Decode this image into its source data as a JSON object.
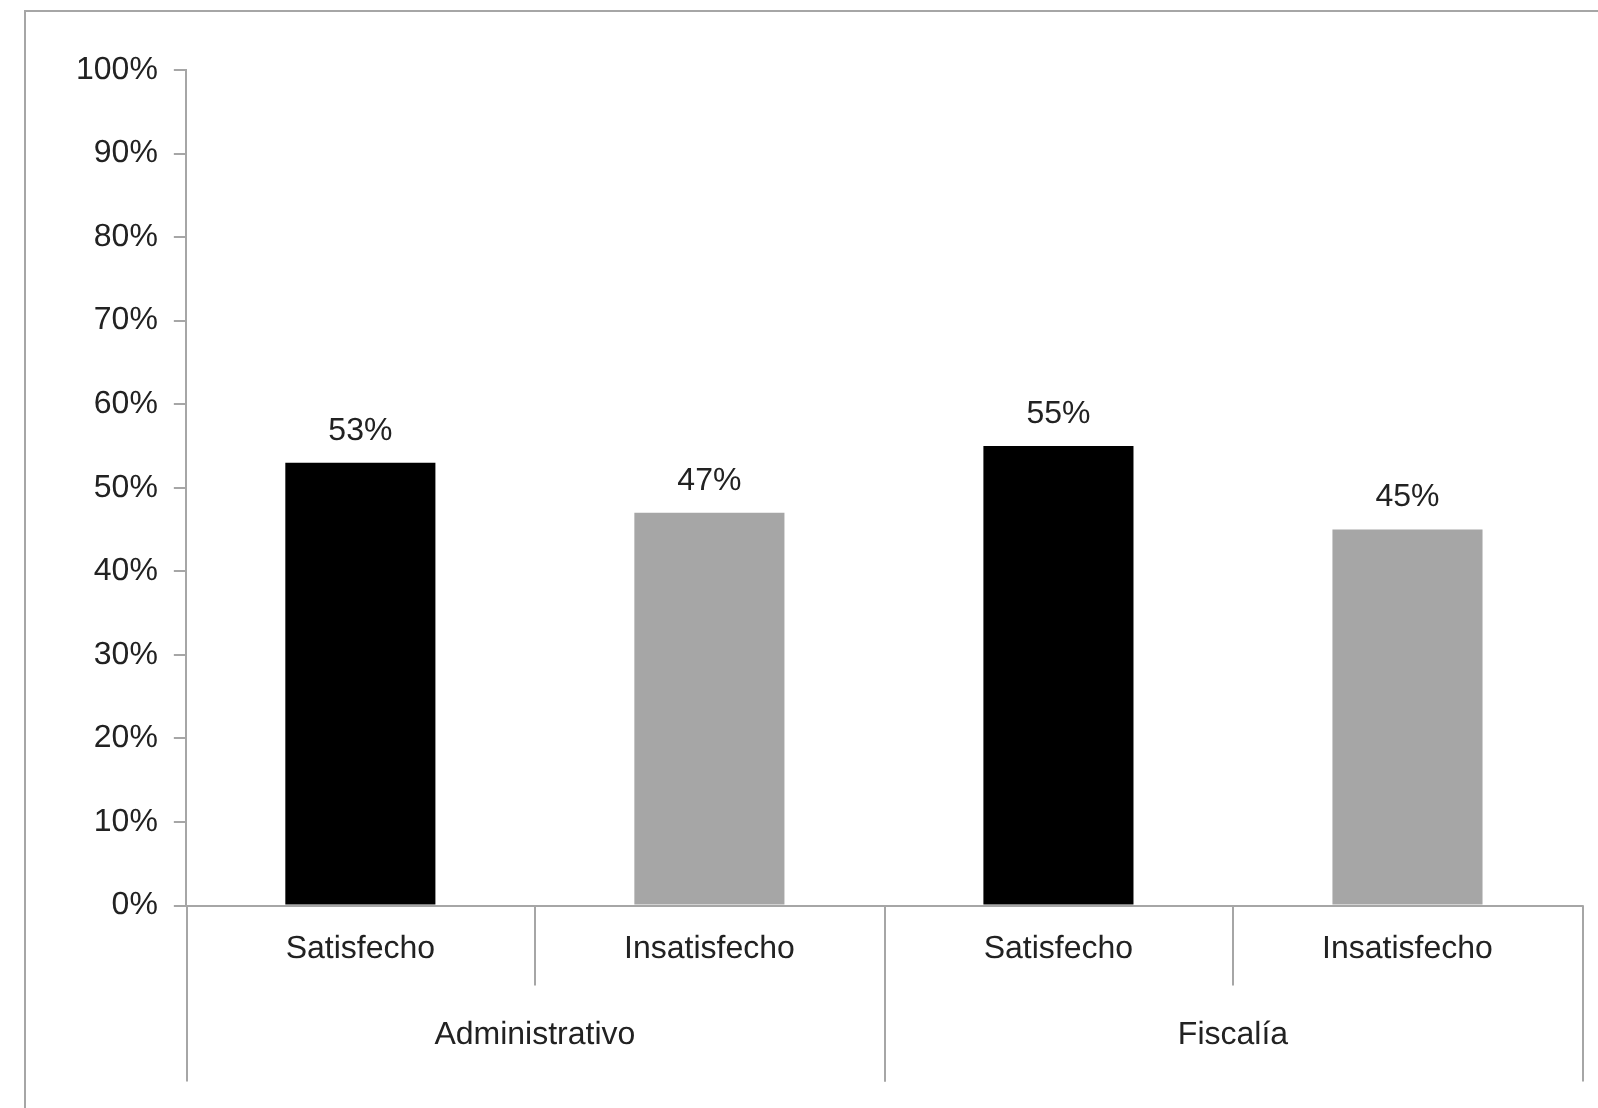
{
  "chart_data": {
    "type": "bar",
    "categories": [
      "Satisfecho",
      "Insatisfecho",
      "Satisfecho",
      "Insatisfecho"
    ],
    "values": [
      53,
      47,
      55,
      45
    ],
    "colors": [
      "#000000",
      "#a6a6a6",
      "#000000",
      "#a6a6a6"
    ],
    "value_labels": [
      "53%",
      "47%",
      "55%",
      "45%"
    ],
    "ylim": [
      0,
      100
    ],
    "yticks": [
      {
        "value": 0,
        "label": "0%"
      },
      {
        "value": 10,
        "label": "10%"
      },
      {
        "value": 20,
        "label": "20%"
      },
      {
        "value": 30,
        "label": "30%"
      },
      {
        "value": 40,
        "label": "40%"
      },
      {
        "value": 50,
        "label": "50%"
      },
      {
        "value": 60,
        "label": "60%"
      },
      {
        "value": 70,
        "label": "70%"
      },
      {
        "value": 80,
        "label": "80%"
      },
      {
        "value": 90,
        "label": "90%"
      },
      {
        "value": 100,
        "label": "100%"
      }
    ],
    "annotations": [
      "Administrativo",
      "Fiscalía"
    ],
    "grid": false,
    "legend": false
  }
}
